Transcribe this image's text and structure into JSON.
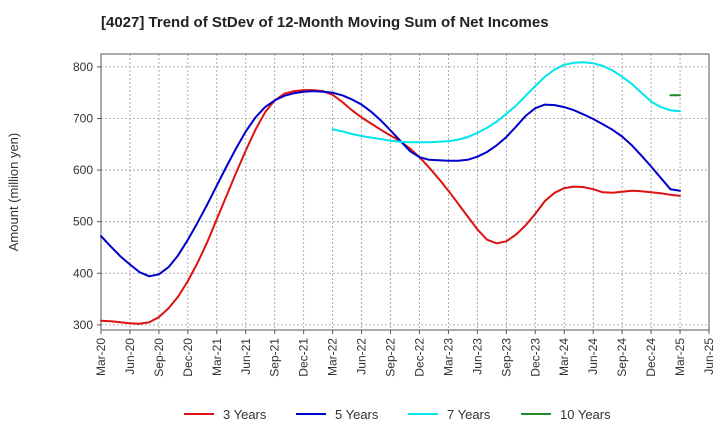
{
  "chart_data": {
    "type": "line",
    "title": "[4027]  Trend of StDev of 12-Month Moving Sum of Net Incomes",
    "xlabel": "",
    "ylabel": "Amount (million yen)",
    "ylim": [
      290,
      825
    ],
    "yticks": [
      300,
      400,
      500,
      600,
      700,
      800
    ],
    "xlim": [
      "2020-03",
      "2025-06"
    ],
    "xticks": [
      "Mar-20",
      "Jun-20",
      "Sep-20",
      "Dec-20",
      "Mar-21",
      "Jun-21",
      "Sep-21",
      "Dec-21",
      "Mar-22",
      "Jun-22",
      "Sep-22",
      "Dec-22",
      "Mar-23",
      "Jun-23",
      "Sep-23",
      "Dec-23",
      "Mar-24",
      "Jun-24",
      "Sep-24",
      "Dec-24",
      "Mar-25",
      "Jun-25"
    ],
    "grid": true,
    "legend_position": "bottom",
    "series": [
      {
        "name": "3 Years",
        "color": "#dd1111",
        "points": [
          [
            "2020-03",
            308
          ],
          [
            "2020-04",
            307
          ],
          [
            "2020-05",
            305
          ],
          [
            "2020-06",
            303
          ],
          [
            "2020-07",
            302
          ],
          [
            "2020-08",
            305
          ],
          [
            "2020-09",
            315
          ],
          [
            "2020-10",
            332
          ],
          [
            "2020-11",
            355
          ],
          [
            "2020-12",
            385
          ],
          [
            "2021-01",
            420
          ],
          [
            "2021-02",
            460
          ],
          [
            "2021-03",
            505
          ],
          [
            "2021-04",
            550
          ],
          [
            "2021-05",
            595
          ],
          [
            "2021-06",
            638
          ],
          [
            "2021-07",
            678
          ],
          [
            "2021-08",
            712
          ],
          [
            "2021-09",
            735
          ],
          [
            "2021-10",
            748
          ],
          [
            "2021-11",
            753
          ],
          [
            "2021-12",
            755
          ],
          [
            "2022-01",
            755
          ],
          [
            "2022-02",
            753
          ],
          [
            "2022-03",
            746
          ],
          [
            "2022-04",
            732
          ],
          [
            "2022-05",
            716
          ],
          [
            "2022-06",
            702
          ],
          [
            "2022-07",
            690
          ],
          [
            "2022-08",
            678
          ],
          [
            "2022-09",
            667
          ],
          [
            "2022-10",
            656
          ],
          [
            "2022-11",
            642
          ],
          [
            "2022-12",
            625
          ],
          [
            "2023-01",
            605
          ],
          [
            "2023-02",
            583
          ],
          [
            "2023-03",
            560
          ],
          [
            "2023-04",
            535
          ],
          [
            "2023-05",
            510
          ],
          [
            "2023-06",
            485
          ],
          [
            "2023-07",
            465
          ],
          [
            "2023-08",
            458
          ],
          [
            "2023-09",
            462
          ],
          [
            "2023-10",
            475
          ],
          [
            "2023-11",
            493
          ],
          [
            "2023-12",
            515
          ],
          [
            "2024-01",
            540
          ],
          [
            "2024-02",
            556
          ],
          [
            "2024-03",
            565
          ],
          [
            "2024-04",
            568
          ],
          [
            "2024-05",
            567
          ],
          [
            "2024-06",
            563
          ],
          [
            "2024-07",
            557
          ],
          [
            "2024-08",
            556
          ],
          [
            "2024-09",
            558
          ],
          [
            "2024-10",
            560
          ],
          [
            "2024-11",
            559
          ],
          [
            "2024-12",
            557
          ],
          [
            "2025-01",
            555
          ],
          [
            "2025-02",
            552
          ],
          [
            "2025-03",
            550
          ]
        ]
      },
      {
        "name": "5 Years",
        "color": "#0000cc",
        "points": [
          [
            "2020-03",
            472
          ],
          [
            "2020-04",
            452
          ],
          [
            "2020-05",
            433
          ],
          [
            "2020-06",
            417
          ],
          [
            "2020-07",
            402
          ],
          [
            "2020-08",
            394
          ],
          [
            "2020-09",
            398
          ],
          [
            "2020-10",
            412
          ],
          [
            "2020-11",
            435
          ],
          [
            "2020-12",
            465
          ],
          [
            "2021-01",
            498
          ],
          [
            "2021-02",
            533
          ],
          [
            "2021-03",
            570
          ],
          [
            "2021-04",
            607
          ],
          [
            "2021-05",
            642
          ],
          [
            "2021-06",
            675
          ],
          [
            "2021-07",
            702
          ],
          [
            "2021-08",
            722
          ],
          [
            "2021-09",
            735
          ],
          [
            "2021-10",
            744
          ],
          [
            "2021-11",
            749
          ],
          [
            "2021-12",
            752
          ],
          [
            "2022-01",
            753
          ],
          [
            "2022-02",
            752
          ],
          [
            "2022-03",
            750
          ],
          [
            "2022-04",
            745
          ],
          [
            "2022-05",
            737
          ],
          [
            "2022-06",
            727
          ],
          [
            "2022-07",
            713
          ],
          [
            "2022-08",
            696
          ],
          [
            "2022-09",
            677
          ],
          [
            "2022-10",
            657
          ],
          [
            "2022-11",
            637
          ],
          [
            "2022-12",
            625
          ],
          [
            "2023-01",
            620
          ],
          [
            "2023-02",
            619
          ],
          [
            "2023-03",
            618
          ],
          [
            "2023-04",
            618
          ],
          [
            "2023-05",
            620
          ],
          [
            "2023-06",
            626
          ],
          [
            "2023-07",
            635
          ],
          [
            "2023-08",
            648
          ],
          [
            "2023-09",
            664
          ],
          [
            "2023-10",
            684
          ],
          [
            "2023-11",
            705
          ],
          [
            "2023-12",
            720
          ],
          [
            "2024-01",
            727
          ],
          [
            "2024-02",
            726
          ],
          [
            "2024-03",
            722
          ],
          [
            "2024-04",
            716
          ],
          [
            "2024-05",
            708
          ],
          [
            "2024-06",
            699
          ],
          [
            "2024-07",
            689
          ],
          [
            "2024-08",
            678
          ],
          [
            "2024-09",
            665
          ],
          [
            "2024-10",
            648
          ],
          [
            "2024-11",
            628
          ],
          [
            "2024-12",
            607
          ],
          [
            "2025-01",
            585
          ],
          [
            "2025-02",
            563
          ],
          [
            "2025-03",
            560
          ]
        ]
      },
      {
        "name": "7 Years",
        "color": "#00e5ee",
        "points": [
          [
            "2022-03",
            679
          ],
          [
            "2022-04",
            675
          ],
          [
            "2022-05",
            670
          ],
          [
            "2022-06",
            666
          ],
          [
            "2022-07",
            663
          ],
          [
            "2022-08",
            660
          ],
          [
            "2022-09",
            657
          ],
          [
            "2022-10",
            655
          ],
          [
            "2022-11",
            654
          ],
          [
            "2022-12",
            654
          ],
          [
            "2023-01",
            654
          ],
          [
            "2023-02",
            655
          ],
          [
            "2023-03",
            656
          ],
          [
            "2023-04",
            659
          ],
          [
            "2023-05",
            664
          ],
          [
            "2023-06",
            672
          ],
          [
            "2023-07",
            682
          ],
          [
            "2023-08",
            694
          ],
          [
            "2023-09",
            709
          ],
          [
            "2023-10",
            725
          ],
          [
            "2023-11",
            744
          ],
          [
            "2023-12",
            763
          ],
          [
            "2024-01",
            781
          ],
          [
            "2024-02",
            795
          ],
          [
            "2024-03",
            804
          ],
          [
            "2024-04",
            808
          ],
          [
            "2024-05",
            809
          ],
          [
            "2024-06",
            807
          ],
          [
            "2024-07",
            802
          ],
          [
            "2024-08",
            793
          ],
          [
            "2024-09",
            781
          ],
          [
            "2024-10",
            767
          ],
          [
            "2024-11",
            750
          ],
          [
            "2024-12",
            733
          ],
          [
            "2025-01",
            722
          ],
          [
            "2025-02",
            716
          ],
          [
            "2025-03",
            714
          ]
        ]
      },
      {
        "name": "10 Years",
        "color": "#228b22",
        "points": [
          [
            "2025-02",
            745
          ],
          [
            "2025-03",
            745
          ]
        ]
      }
    ]
  }
}
